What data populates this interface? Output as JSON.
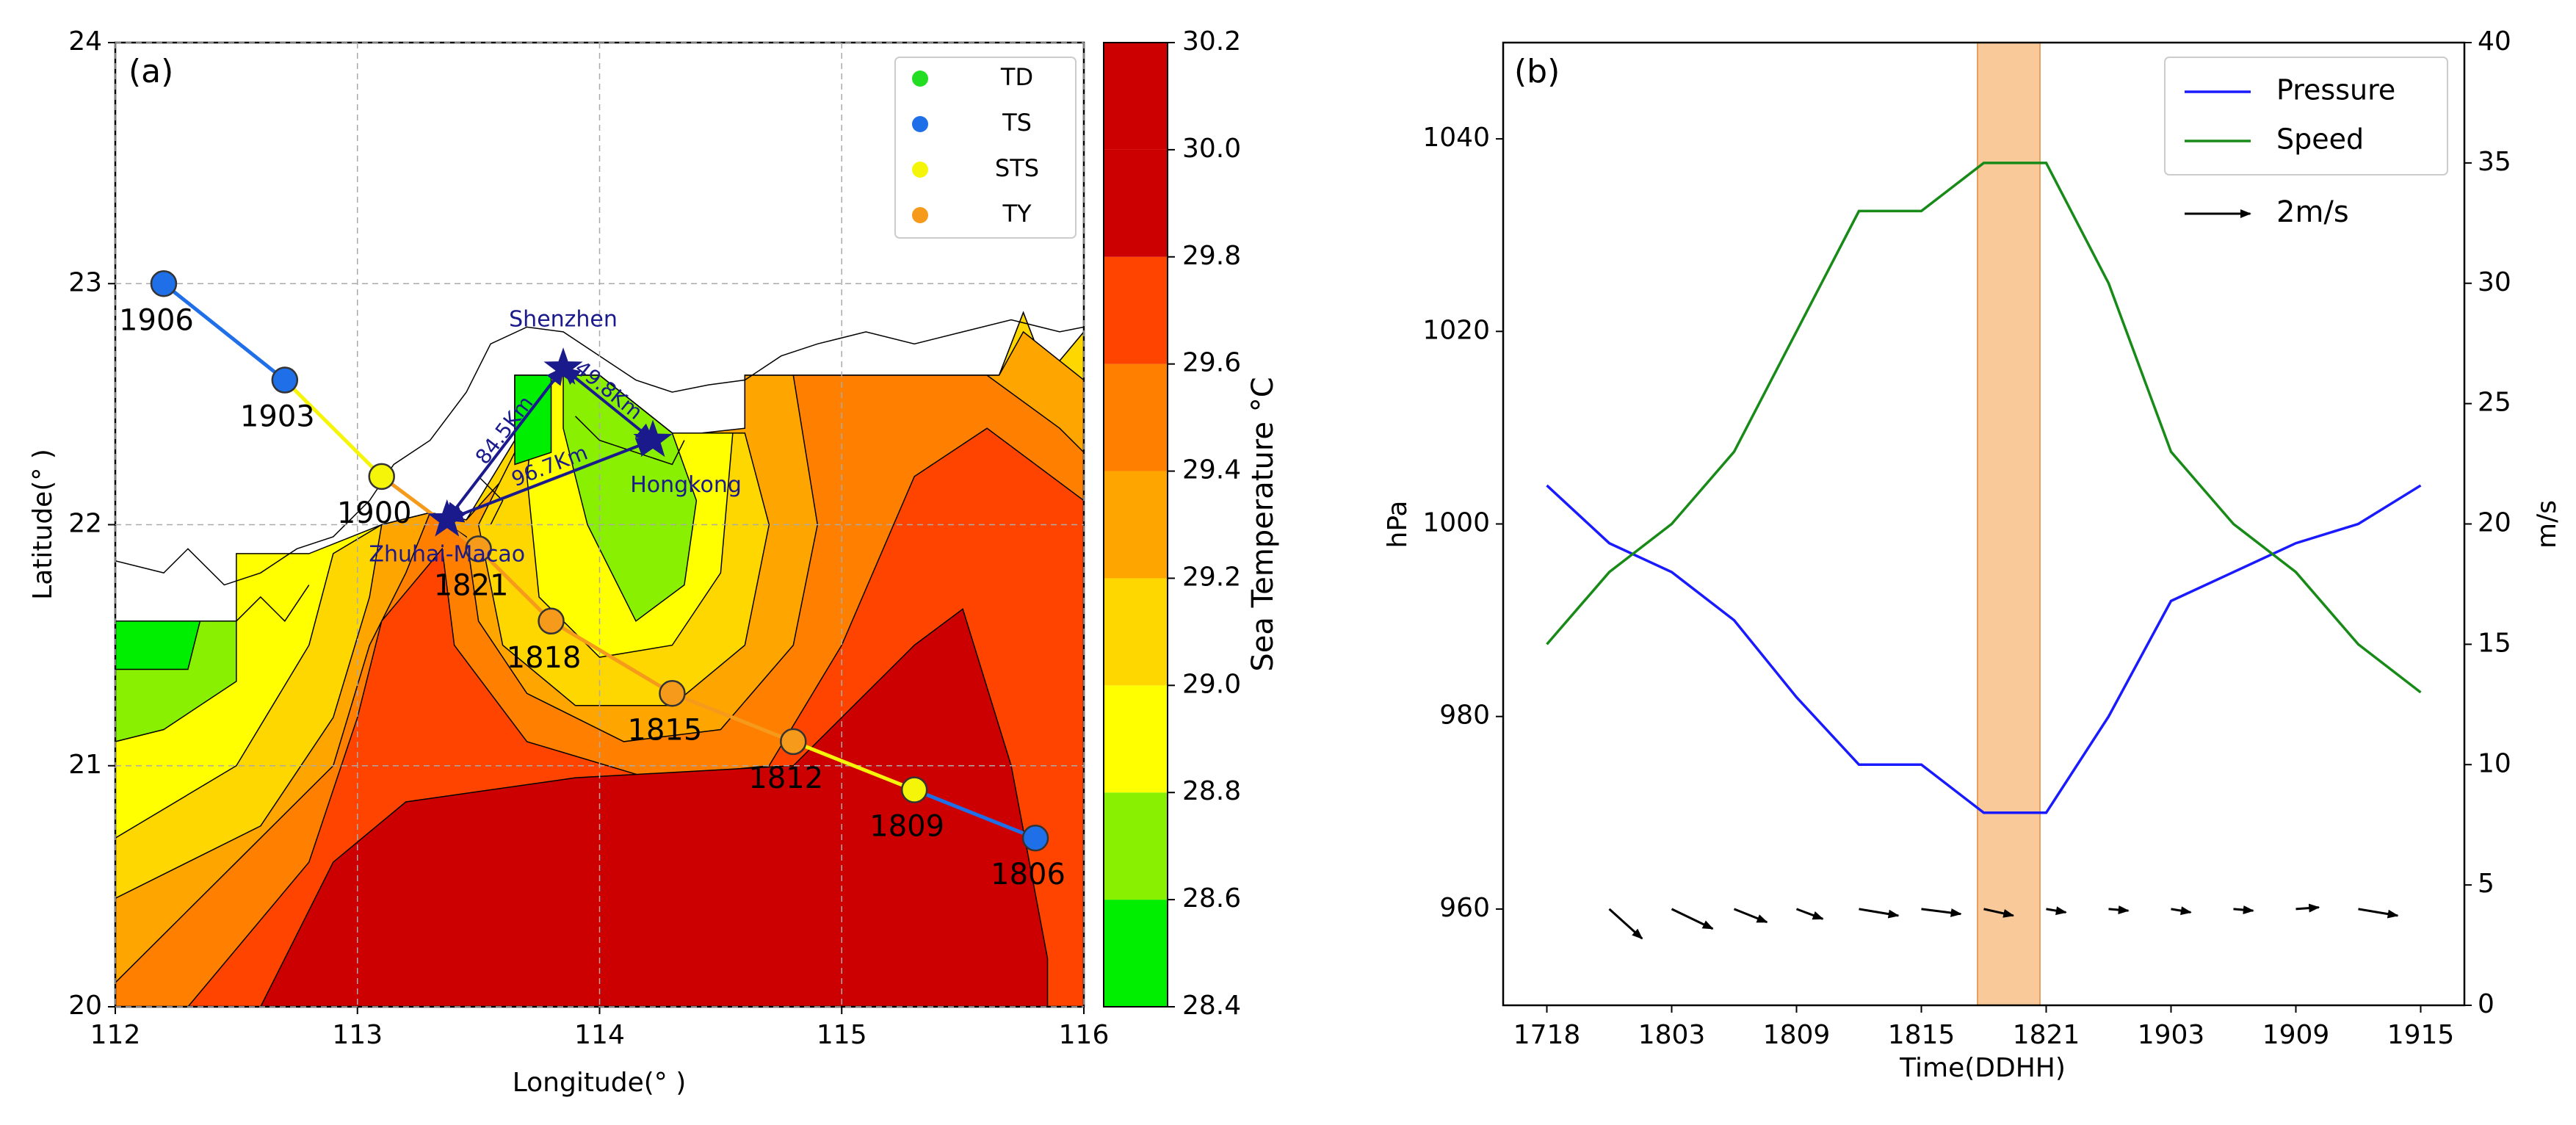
{
  "chart_data": [
    {
      "type": "map",
      "panel": "(a)",
      "xlabel": "Longitude(° )",
      "ylabel": "Latitude(° )",
      "xlim": [
        112,
        116
      ],
      "ylim": [
        20,
        24
      ],
      "xticks": [
        112,
        113,
        114,
        115,
        116
      ],
      "yticks": [
        20,
        21,
        22,
        23,
        24
      ],
      "grid": true,
      "legend_loc": "upper right",
      "legend": [
        {
          "name": "TD",
          "color": "#22dd22"
        },
        {
          "name": "TS",
          "color": "#1f6fe8"
        },
        {
          "name": "STS",
          "color": "#f5f50a"
        },
        {
          "name": "TY",
          "color": "#f59a1b"
        }
      ],
      "track": {
        "labels": [
          "1806",
          "1809",
          "1812",
          "1815",
          "1818",
          "1821",
          "1900",
          "1903",
          "1906"
        ],
        "lon": [
          115.8,
          115.3,
          114.8,
          114.3,
          113.8,
          113.5,
          113.1,
          112.7,
          112.2
        ],
        "lat": [
          20.7,
          20.9,
          21.1,
          21.3,
          21.6,
          21.9,
          22.2,
          22.6,
          23.0
        ],
        "class": [
          "TS",
          "STS",
          "TY",
          "TY",
          "TY",
          "TY",
          "STS",
          "TS",
          "TS"
        ]
      },
      "cities": [
        {
          "name": "Shenzhen",
          "lon": 113.85,
          "lat": 22.65
        },
        {
          "name": "Hongkong",
          "lon": 114.22,
          "lat": 22.35
        },
        {
          "name": "Zhuhai-Macao",
          "lon": 113.37,
          "lat": 22.02
        }
      ],
      "links": [
        {
          "from": 2,
          "to": 0,
          "label": "84.5Km"
        },
        {
          "from": 0,
          "to": 1,
          "label": "49.8Km"
        },
        {
          "from": 2,
          "to": 1,
          "label": "96.7Km"
        }
      ],
      "colorbar": {
        "label": "Sea Temperature °C",
        "lim": [
          28.4,
          30.2
        ],
        "ticks": [
          28.4,
          28.6,
          28.8,
          {
            "value": 29,
            "label": "29.0"
          },
          29.2,
          29.4,
          29.6,
          29.8,
          {
            "value": 30,
            "label": "30.0"
          },
          30.2
        ],
        "colors": [
          "#00ee00",
          "#88f000",
          "#ffff00",
          "#ffd700",
          "#ffa500",
          "#ff8000",
          "#ff4400",
          "#cc0000",
          "#cc0000"
        ]
      }
    },
    {
      "type": "line",
      "panel": "(b)",
      "xlabel": "Time(DDHH)",
      "ylabel": "hPa",
      "y2label": "m/s",
      "categories": [
        "1718",
        null,
        "1803",
        null,
        "1809",
        null,
        "1815",
        null,
        "1821",
        null,
        "1903",
        null,
        "1909",
        null,
        "1915"
      ],
      "ylim": [
        950,
        1050
      ],
      "yticks": [
        960,
        980,
        1000,
        1020,
        1040
      ],
      "y2lim": [
        0,
        40
      ],
      "y2ticks": [
        0,
        5,
        10,
        15,
        20,
        25,
        30,
        35,
        40
      ],
      "legend_loc": "upper right",
      "series": [
        {
          "name": "Pressure",
          "color": "#1a1aff",
          "values": [
            1004,
            998,
            995,
            990,
            982,
            975,
            975,
            970,
            970,
            980,
            992,
            995,
            998,
            1000,
            1004
          ]
        },
        {
          "name": "Speed",
          "color": "#188a18",
          "axis": "y2",
          "values": [
            15,
            18,
            20,
            23,
            28,
            33,
            33,
            35,
            35,
            30,
            23,
            20,
            18,
            15,
            13
          ]
        }
      ],
      "highlight": [
        6.9,
        7.9
      ],
      "highlight_color": "#f9c99a",
      "wind_vectors": {
        "u": [
          1.0,
          1.25,
          1.0,
          0.8,
          1.2,
          1.2,
          0.9,
          0.6,
          0.6,
          0.6,
          0.6,
          0.7,
          1.2
        ],
        "v": [
          -0.9,
          -0.6,
          -0.4,
          -0.3,
          -0.2,
          -0.15,
          -0.2,
          -0.1,
          -0.05,
          -0.1,
          -0.05,
          0.05,
          -0.2
        ]
      },
      "quiver_key": {
        "value": 2,
        "label": "2m/s"
      }
    }
  ]
}
